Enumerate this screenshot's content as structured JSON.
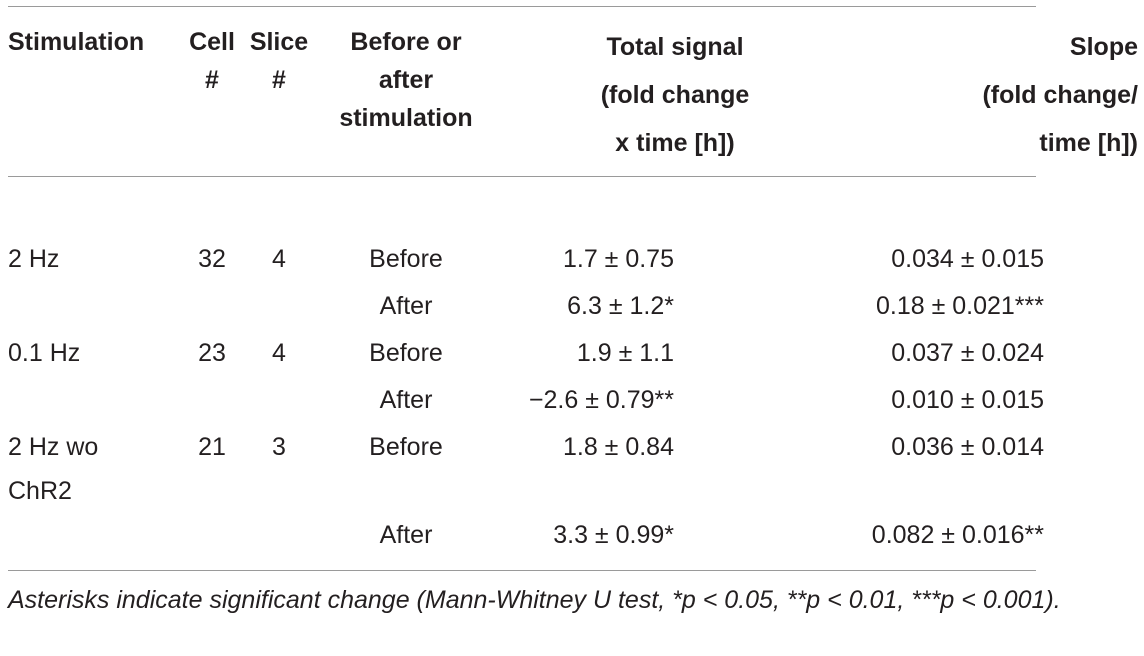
{
  "headers": {
    "stimulation": "Stimulation",
    "cell": "Cell\n#",
    "slice": "Slice\n#",
    "before_after": "Before or\nafter\nstimulation",
    "total_signal": "Total signal\n(fold change\nx time [h])",
    "slope": "Slope\n(fold change/\ntime [h])"
  },
  "rows": [
    {
      "stimulation": "2 Hz",
      "cell": "32",
      "slice": "4",
      "phase": "Before",
      "total": "1.7 ± 0.75",
      "slope": "0.034 ± 0.015"
    },
    {
      "stimulation": "",
      "cell": "",
      "slice": "",
      "phase": "After",
      "total": "6.3 ± 1.2*",
      "slope": "0.18 ± 0.021***"
    },
    {
      "stimulation": "0.1 Hz",
      "cell": "23",
      "slice": "4",
      "phase": "Before",
      "total": "1.9 ± 1.1",
      "slope": "0.037 ± 0.024"
    },
    {
      "stimulation": "",
      "cell": "",
      "slice": "",
      "phase": "After",
      "total": "−2.6 ± 0.79**",
      "slope": "0.010 ± 0.015"
    },
    {
      "stimulation": "2 Hz wo",
      "cell": "21",
      "slice": "3",
      "phase": "Before",
      "total": "1.8 ± 0.84",
      "slope": "0.036 ± 0.014"
    },
    {
      "stimulation": "ChR2",
      "cell": "",
      "slice": "",
      "phase": "",
      "total": "",
      "slope": ""
    },
    {
      "stimulation": "",
      "cell": "",
      "slice": "",
      "phase": "After",
      "total": "3.3 ± 0.99*",
      "slope": "0.082 ± 0.016**"
    }
  ],
  "footnote": "Asterisks indicate significant change (Mann-Whitney U test, *p < 0.05, **p < 0.01, ***p < 0.001)."
}
